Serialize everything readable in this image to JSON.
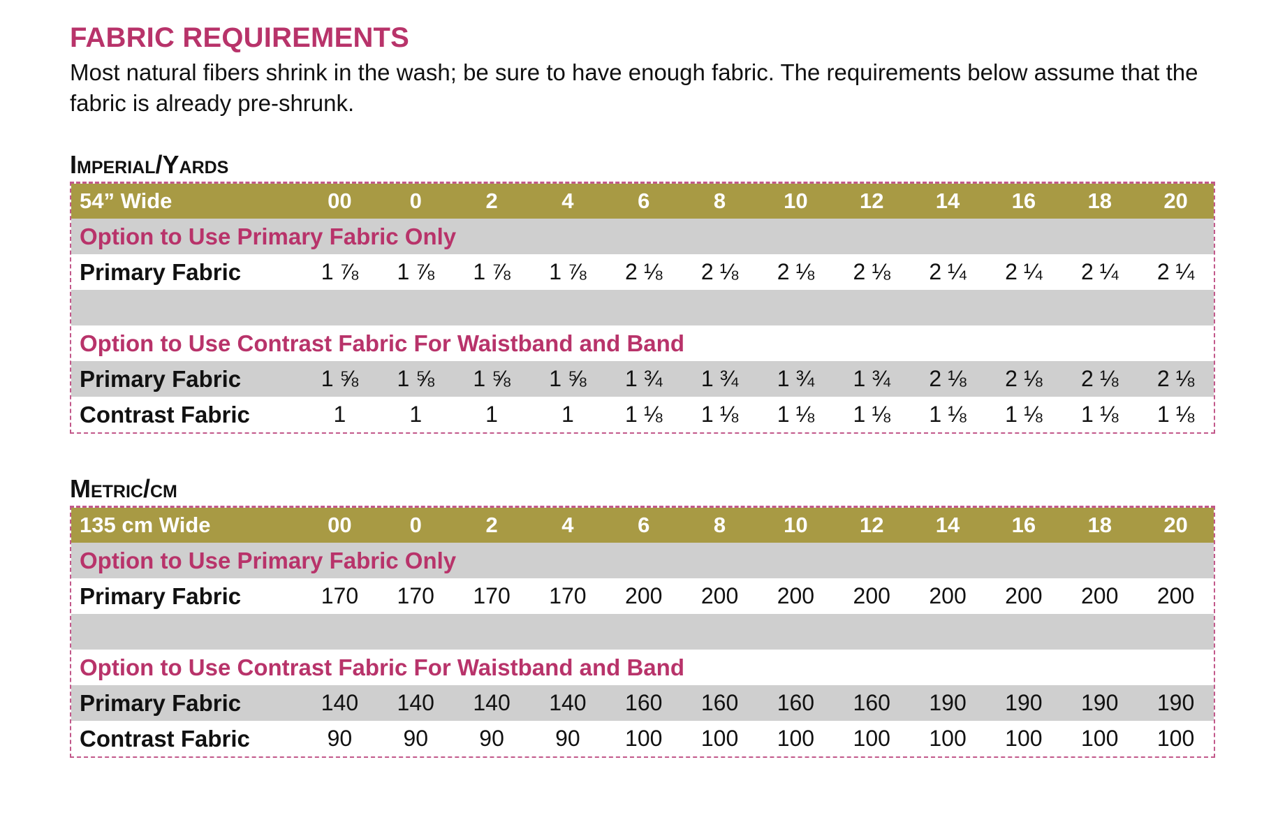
{
  "title": "FABRIC REQUIREMENTS",
  "intro": "Most natural fibers shrink in the wash; be sure to have enough fabric. The requirements below assume that the fabric is already pre-shrunk.",
  "colors": {
    "accent": "#b8336a",
    "header_bg": "#a89a44",
    "row_gray": "#cfcfcf",
    "border": "#c2588a"
  },
  "imperial": {
    "section_title": "Imperial/Yards",
    "width_label": "54” Wide",
    "sizes": [
      "00",
      "0",
      "2",
      "4",
      "6",
      "8",
      "10",
      "12",
      "14",
      "16",
      "18",
      "20"
    ],
    "option1_label": "Option to Use Primary Fabric Only",
    "option1_rows": [
      {
        "label": "Primary Fabric",
        "values": [
          "1 ⅞",
          "1 ⅞",
          "1 ⅞",
          "1 ⅞",
          "2 ⅛",
          "2 ⅛",
          "2 ⅛",
          "2 ⅛",
          "2 ¼",
          "2 ¼",
          "2 ¼",
          "2 ¼"
        ]
      }
    ],
    "option2_label": "Option to Use Contrast Fabric For Waistband and Band",
    "option2_rows": [
      {
        "label": "Primary Fabric",
        "values": [
          "1 ⅝",
          "1 ⅝",
          "1 ⅝",
          "1 ⅝",
          "1 ¾",
          "1 ¾",
          "1 ¾",
          "1 ¾",
          "2 ⅛",
          "2 ⅛",
          "2 ⅛",
          "2 ⅛"
        ]
      },
      {
        "label": "Contrast Fabric",
        "values": [
          "1",
          "1",
          "1",
          "1",
          "1 ⅛",
          "1 ⅛",
          "1 ⅛",
          "1 ⅛",
          "1 ⅛",
          "1 ⅛",
          "1 ⅛",
          "1 ⅛"
        ]
      }
    ]
  },
  "metric": {
    "section_title": "Metric/cm",
    "width_label": "135 cm Wide",
    "sizes": [
      "00",
      "0",
      "2",
      "4",
      "6",
      "8",
      "10",
      "12",
      "14",
      "16",
      "18",
      "20"
    ],
    "option1_label": "Option to Use Primary Fabric Only",
    "option1_rows": [
      {
        "label": "Primary Fabric",
        "values": [
          "170",
          "170",
          "170",
          "170",
          "200",
          "200",
          "200",
          "200",
          "200",
          "200",
          "200",
          "200"
        ]
      }
    ],
    "option2_label": "Option to Use Contrast Fabric For Waistband and Band",
    "option2_rows": [
      {
        "label": "Primary Fabric",
        "values": [
          "140",
          "140",
          "140",
          "140",
          "160",
          "160",
          "160",
          "160",
          "190",
          "190",
          "190",
          "190"
        ]
      },
      {
        "label": "Contrast Fabric",
        "values": [
          "90",
          "90",
          "90",
          "90",
          "100",
          "100",
          "100",
          "100",
          "100",
          "100",
          "100",
          "100"
        ]
      }
    ]
  }
}
